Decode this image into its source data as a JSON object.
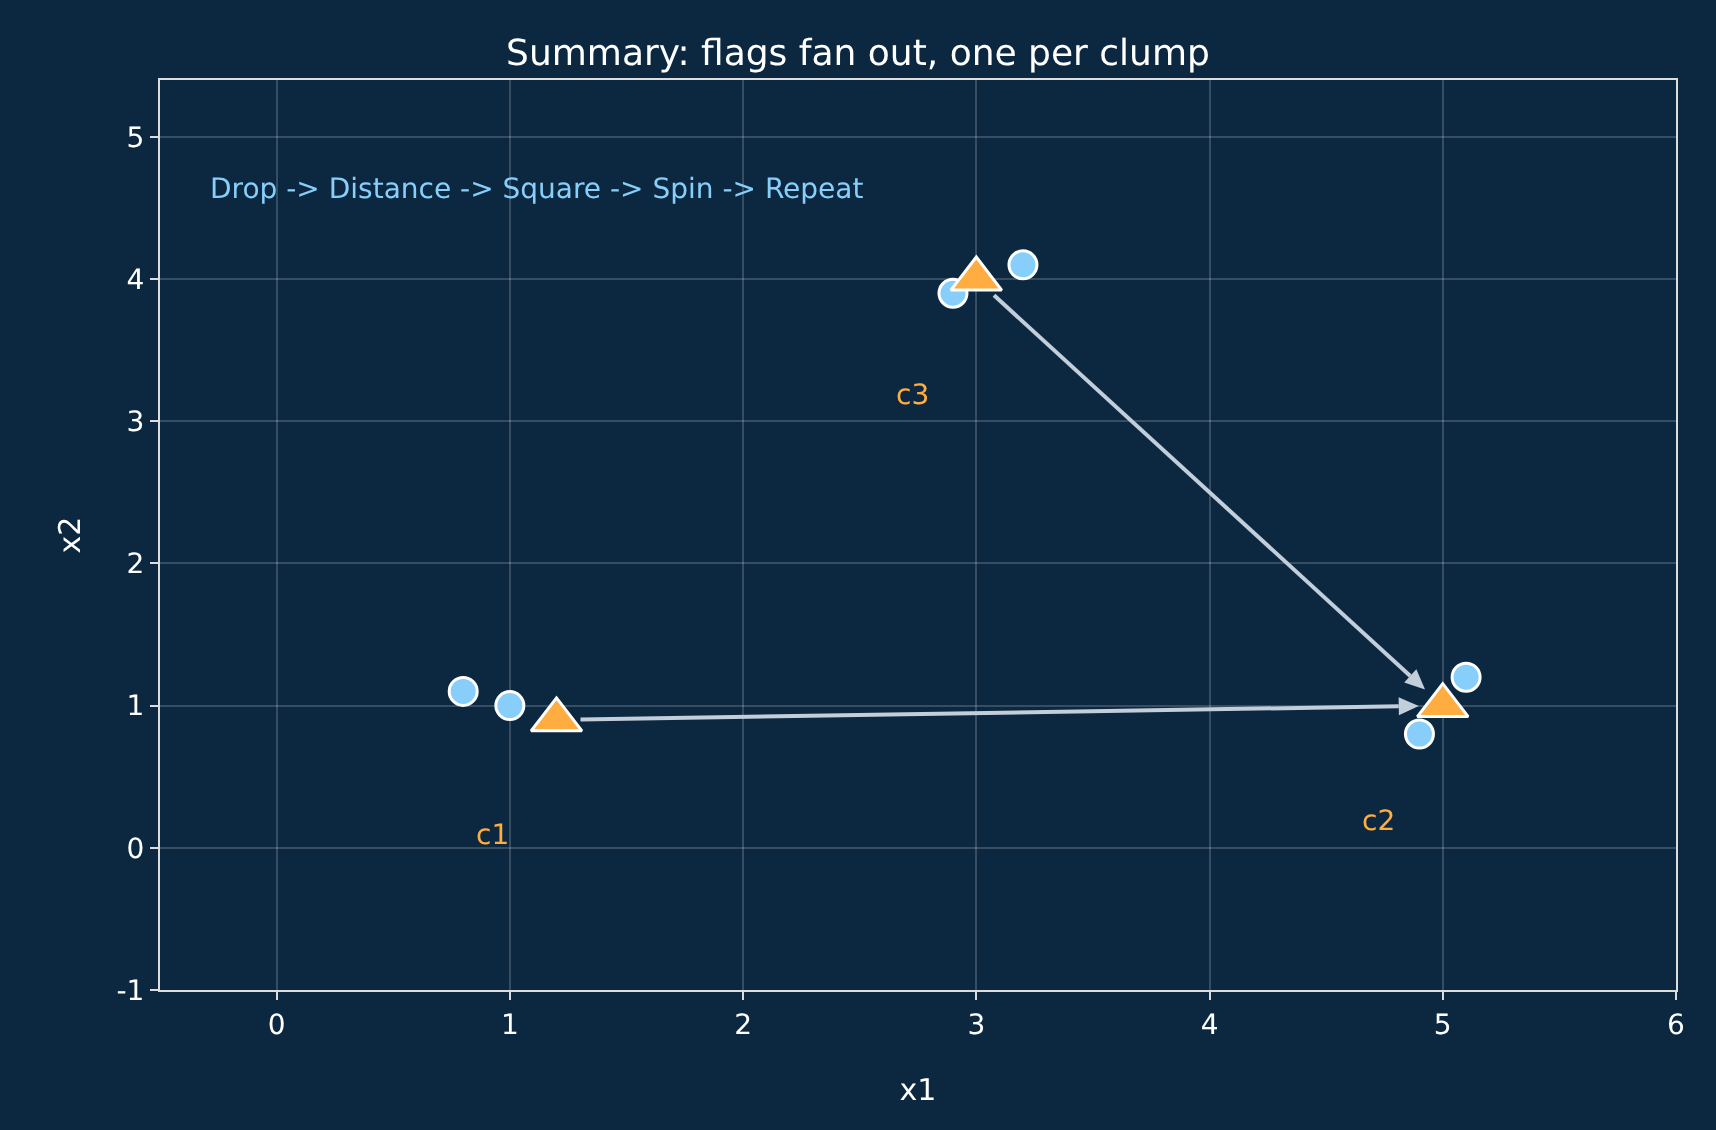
{
  "chart_data": {
    "type": "scatter",
    "title": "Summary: flags fan out, one per clump",
    "xlabel": "x1",
    "ylabel": "x2",
    "xlim": [
      -0.5,
      6
    ],
    "xticks": [
      0,
      1,
      2,
      3,
      4,
      5,
      6
    ],
    "ylim": [
      -1,
      5.4
    ],
    "yticks": [
      -1,
      0,
      1,
      2,
      3,
      4,
      5
    ],
    "grid": true,
    "series": [
      {
        "color": "#87cefa",
        "x": [
          0.8,
          1.0,
          2.9,
          3.2,
          4.9,
          5.1
        ],
        "values": [
          1.1,
          1.0,
          3.9,
          4.1,
          0.8,
          1.2
        ],
        "marker": "circle"
      },
      {
        "color": "#ffac40",
        "x": [
          1.2,
          5.0,
          3.0
        ],
        "values": [
          0.9,
          1.0,
          4.0
        ],
        "marker": "triangle"
      }
    ],
    "annotations": [
      "c1",
      "c2",
      "c3",
      "Drop -> Distance -> Square -> Spin -> Repeat"
    ]
  }
}
